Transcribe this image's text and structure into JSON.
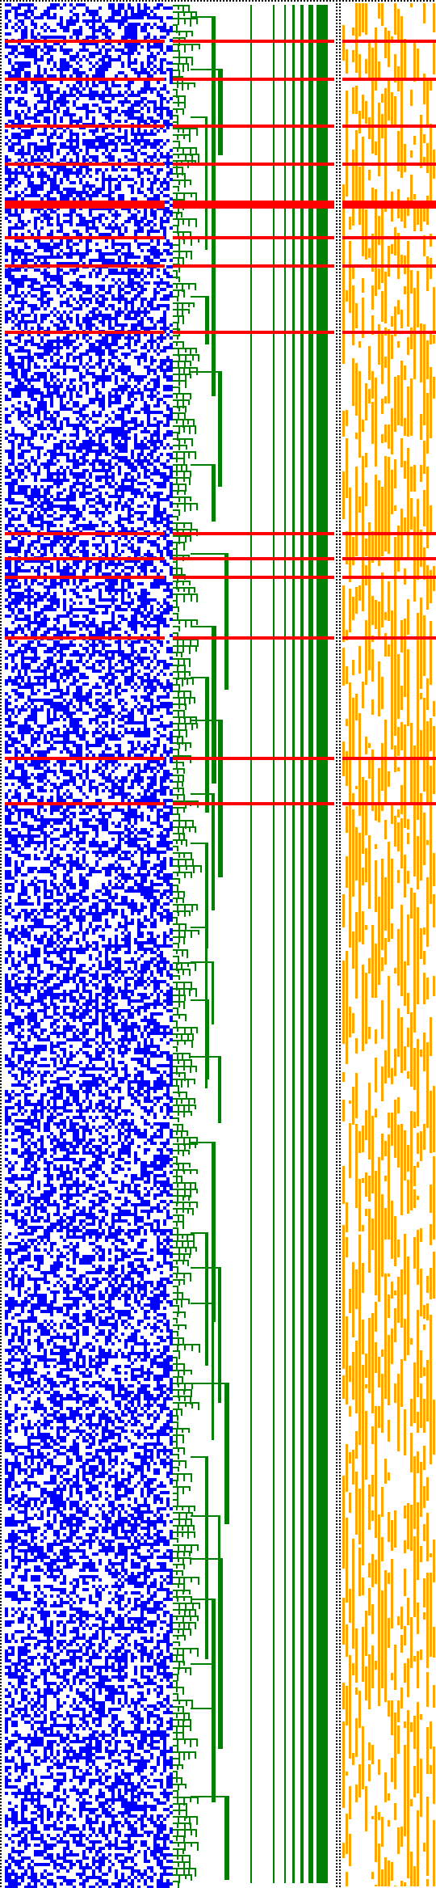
{
  "colors": {
    "background": "#ffffff",
    "left_block": "#0000ff",
    "tree": "#008000",
    "right_block": "#ffa500",
    "highlight": "#ff0000",
    "border_dots": "#000000"
  },
  "panels": [
    {
      "name": "left-matrix-panel",
      "fill_density": 0.5
    },
    {
      "name": "tree-panel",
      "fill_density": 0
    },
    {
      "name": "right-matrix-panel",
      "fill_density": 0.45
    }
  ],
  "highlight_rows_fraction": [
    0.021,
    0.041,
    0.066,
    0.086,
    0.106,
    0.125,
    0.14,
    0.175,
    0.282,
    0.295,
    0.305,
    0.337,
    0.401,
    0.425
  ],
  "vertical_separators": [
    "dotted-left",
    "dotted-middle",
    "dotted-right"
  ]
}
